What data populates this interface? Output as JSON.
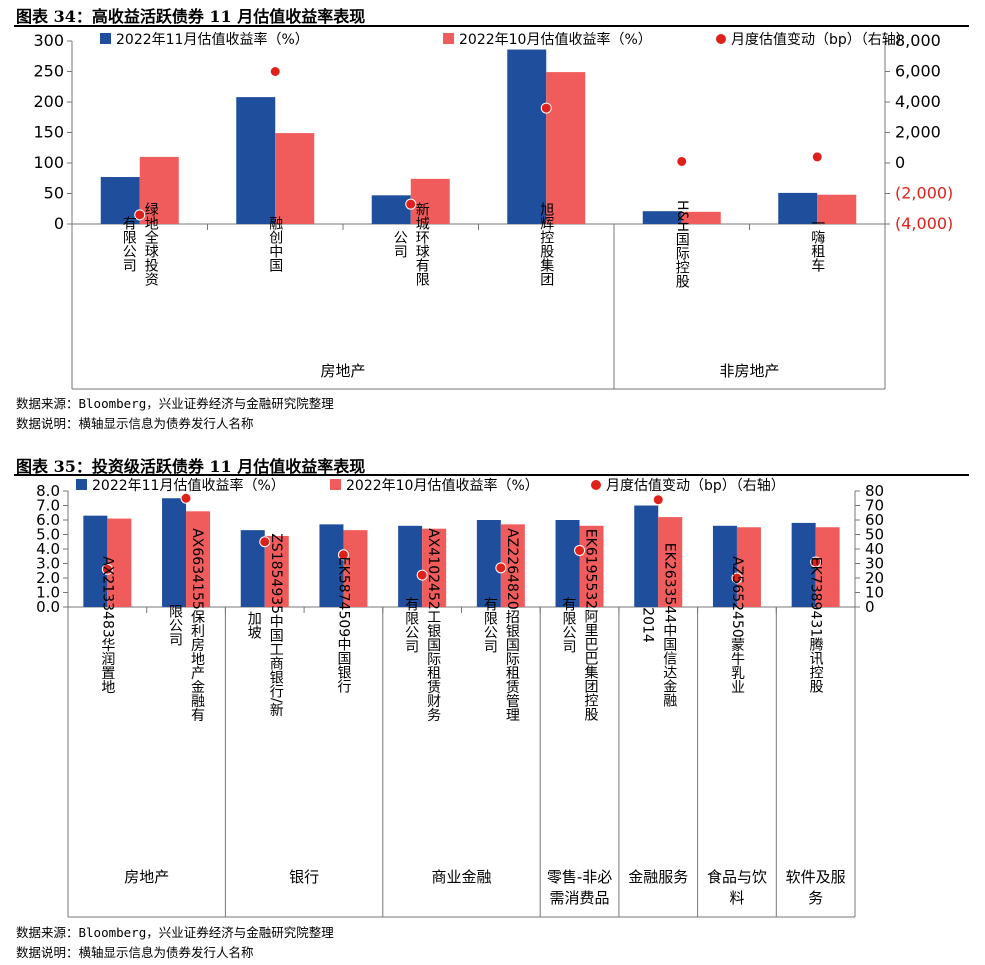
{
  "figures": [
    {
      "title": "图表 34：高收益活跃债券 11 月估值收益率表现",
      "source": "数据来源：Bloomberg，兴业证券经济与金融研究院整理",
      "note": "数据说明：横轴显示信息为债券发行人名称"
    },
    {
      "title": "图表 35：投资级活跃债券 11 月估值收益率表现",
      "source": "数据来源：Bloomberg，兴业证券经济与金融研究院整理",
      "note": "数据说明：横轴显示信息为债券发行人名称"
    }
  ],
  "colors": {
    "nov": "#1f4e9c",
    "oct": "#f05c5c",
    "dot": "#e0211b",
    "neg_tick": "#e0211b"
  },
  "chart_data": [
    {
      "type": "bar",
      "title": "高收益活跃债券 11 月估值收益率表现",
      "categories": [
        "绿地全球投资有限公司",
        "融创中国",
        "新城环球有限公司",
        "旭辉控股集团",
        "H&H国际控股",
        "一嗨租车"
      ],
      "category_lines": [
        [
          "绿地全球投资",
          "有限公司"
        ],
        [
          "融创中国"
        ],
        [
          "新城环球有限",
          "公司"
        ],
        [
          "旭辉控股集团"
        ],
        [
          "H&H国际控股"
        ],
        [
          "一嗨租车"
        ]
      ],
      "groups": [
        {
          "label": "房地产",
          "count": 4
        },
        {
          "label": "非房地产",
          "count": 2
        }
      ],
      "series": [
        {
          "name": "2022年11月估值收益率（%）",
          "kind": "bar",
          "axis": "left",
          "values": [
            77,
            208,
            47,
            286,
            21,
            51
          ]
        },
        {
          "name": "2022年10月估值收益率（%）",
          "kind": "bar",
          "axis": "left",
          "values": [
            110,
            149,
            74,
            249,
            20,
            48
          ]
        },
        {
          "name": "月度估值变动（bp）（右轴）",
          "kind": "dot",
          "axis": "right",
          "values": [
            -3400,
            6000,
            -2700,
            3600,
            100,
            400
          ]
        }
      ],
      "y_left": {
        "range": [
          0,
          300
        ],
        "ticks": [
          "0",
          "50",
          "100",
          "150",
          "200",
          "250",
          "300"
        ],
        "tick_values": [
          0,
          50,
          100,
          150,
          200,
          250,
          300
        ]
      },
      "y_right": {
        "range": [
          -4000,
          8000
        ],
        "ticks": [
          "(4,000)",
          "(2,000)",
          "0",
          "2,000",
          "4,000",
          "6,000",
          "8,000"
        ],
        "tick_values": [
          -4000,
          -2000,
          0,
          2000,
          4000,
          6000,
          8000
        ]
      },
      "legend_position": "top"
    },
    {
      "type": "bar",
      "title": "投资级活跃债券 11 月估值收益率表现",
      "categories": [
        "AX2133483华润置地",
        "AX6634155保利房地产金融有限公司",
        "ZS1854935中国工商银行/新加坡",
        "EK5874509中国银行",
        "AX4102452工银国际租赁财务有限公司",
        "AZ2264820招银国际租赁管理有限公司",
        "EK6195532阿里巴巴集团控股有限公司",
        "EK2633544中国信达金融2014",
        "AZ5652450蒙牛乳业",
        "EK7389431腾讯控股"
      ],
      "category_lines": [
        [
          "AX2133483华润置地"
        ],
        [
          "AX6634155保利房地产金融有",
          "限公司"
        ],
        [
          "ZS1854935中国工商银行/新",
          "加坡"
        ],
        [
          "EK5874509中国银行"
        ],
        [
          "AX4102452工银国际租赁财务",
          "有限公司"
        ],
        [
          "AZ2264820招银国际租赁管理",
          "有限公司"
        ],
        [
          "EK6195532阿里巴巴集团控股",
          "有限公司"
        ],
        [
          "EK2633544中国信达金融",
          "2014"
        ],
        [
          "AZ5652450蒙牛乳业"
        ],
        [
          "EK7389431腾讯控股"
        ]
      ],
      "groups": [
        {
          "label": "房地产",
          "count": 2,
          "lines": [
            "房地产"
          ]
        },
        {
          "label": "银行",
          "count": 2,
          "lines": [
            "银行"
          ]
        },
        {
          "label": "商业金融",
          "count": 2,
          "lines": [
            "商业金融"
          ]
        },
        {
          "label": "零售-非必需消费品",
          "count": 1,
          "lines": [
            "零售-非必",
            "需消费品"
          ]
        },
        {
          "label": "金融服务",
          "count": 1,
          "lines": [
            "金融服务"
          ]
        },
        {
          "label": "食品与饮料",
          "count": 1,
          "lines": [
            "食品与饮",
            "料"
          ]
        },
        {
          "label": "软件及服务",
          "count": 1,
          "lines": [
            "软件及服",
            "务"
          ]
        }
      ],
      "series": [
        {
          "name": "2022年11月估值收益率（%）",
          "kind": "bar",
          "axis": "left",
          "values": [
            6.3,
            7.5,
            5.3,
            5.7,
            5.6,
            6.0,
            6.0,
            7.0,
            5.6,
            5.8
          ]
        },
        {
          "name": "2022年10月估值收益率（%）",
          "kind": "bar",
          "axis": "left",
          "values": [
            6.1,
            6.6,
            4.9,
            5.3,
            5.4,
            5.7,
            5.6,
            6.2,
            5.5,
            5.5
          ]
        },
        {
          "name": "月度估值变动（bp）（右轴）",
          "kind": "dot",
          "axis": "right",
          "values": [
            26,
            75,
            45,
            36,
            22,
            27,
            39,
            74,
            20,
            31
          ]
        }
      ],
      "y_left": {
        "range": [
          0,
          8
        ],
        "ticks": [
          "0.0",
          "1.0",
          "2.0",
          "3.0",
          "4.0",
          "5.0",
          "6.0",
          "7.0",
          "8.0"
        ],
        "tick_values": [
          0,
          1,
          2,
          3,
          4,
          5,
          6,
          7,
          8
        ]
      },
      "y_right": {
        "range": [
          0,
          80
        ],
        "ticks": [
          "0",
          "10",
          "20",
          "30",
          "40",
          "50",
          "60",
          "70",
          "80"
        ],
        "tick_values": [
          0,
          10,
          20,
          30,
          40,
          50,
          60,
          70,
          80
        ]
      },
      "legend_position": "top"
    }
  ]
}
